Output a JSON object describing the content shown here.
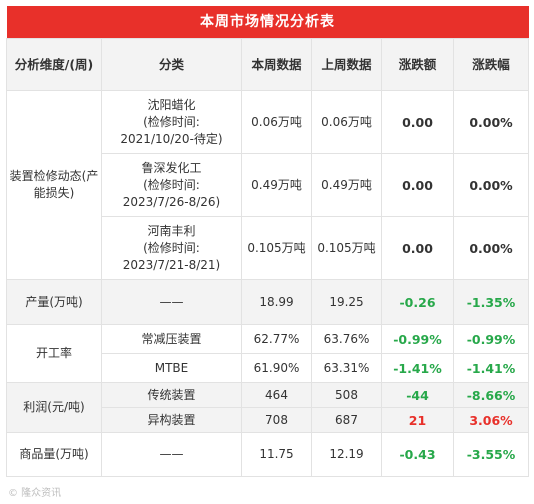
{
  "title": "本周市场情况分析表",
  "headers": {
    "dimension": "分析维度/(周)",
    "category": "分类",
    "this_week": "本周数据",
    "last_week": "上周数据",
    "change": "涨跌额",
    "change_pct": "涨跌幅"
  },
  "rows": {
    "maint_label": "装置检修动态(产能损失)",
    "maint": [
      {
        "name": "沈阳蜡化",
        "note": "(检修时间:",
        "date": "2021/10/20-待定)",
        "this": "0.06万吨",
        "last": "0.06万吨",
        "chg": "0.00",
        "pct": "0.00%"
      },
      {
        "name": "鲁深发化工",
        "note": "(检修时间:",
        "date": "2023/7/26-8/26)",
        "this": "0.49万吨",
        "last": "0.49万吨",
        "chg": "0.00",
        "pct": "0.00%"
      },
      {
        "name": "河南丰利",
        "note": "(检修时间:",
        "date": "2023/7/21-8/21)",
        "this": "0.105万吨",
        "last": "0.105万吨",
        "chg": "0.00",
        "pct": "0.00%"
      }
    ],
    "output": {
      "label": "产量(万吨)",
      "category": "——",
      "this": "18.99",
      "last": "19.25",
      "chg": "-0.26",
      "pct": "-1.35%"
    },
    "operating_label": "开工率",
    "operating": [
      {
        "category": "常减压装置",
        "this": "62.77%",
        "last": "63.76%",
        "chg": "-0.99%",
        "pct": "-0.99%"
      },
      {
        "category": "MTBE",
        "this": "61.90%",
        "last": "63.31%",
        "chg": "-1.41%",
        "pct": "-1.41%"
      }
    ],
    "profit_label": "利润(元/吨)",
    "profit": [
      {
        "category": "传统装置",
        "this": "464",
        "last": "508",
        "chg": "-44",
        "pct": "-8.66%"
      },
      {
        "category": "异构装置",
        "this": "708",
        "last": "687",
        "chg": "21",
        "pct": "3.06%"
      }
    ],
    "commodity": {
      "label": "商品量(万吨)",
      "category": "——",
      "this": "11.75",
      "last": "12.19",
      "chg": "-0.43",
      "pct": "-3.55%"
    }
  },
  "watermark": "© 隆众资讯"
}
